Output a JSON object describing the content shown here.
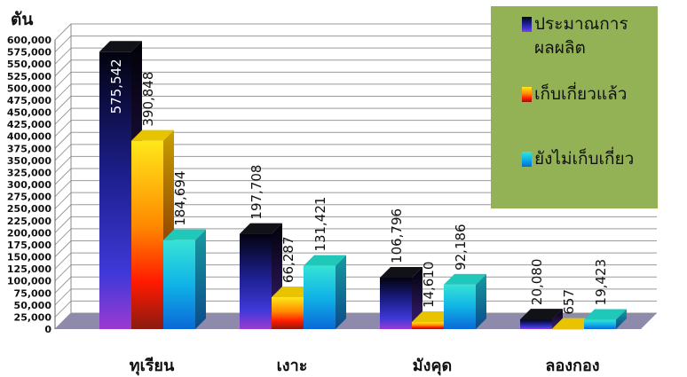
{
  "chart_data": {
    "type": "bar",
    "ylabel": "ตัน",
    "ylim": [
      0,
      600000
    ],
    "ytick_step": 25000,
    "grid": true,
    "legend_position": "top-right",
    "categories": [
      "ทุเรียน",
      "เงาะ",
      "มังคุด",
      "ลองกอง"
    ],
    "series": [
      {
        "name": "ประมาณการผลผลิต",
        "values": [
          575542,
          197708,
          106796,
          20080
        ],
        "labels": [
          "575,542",
          "197,708",
          "106,796",
          "20,080"
        ]
      },
      {
        "name": "เก็บเกี่ยวแล้ว",
        "values": [
          390848,
          66287,
          14610,
          657
        ],
        "labels": [
          "390,848",
          "66,287",
          "14,610",
          "657"
        ]
      },
      {
        "name": "ยังไม่เก็บเกี่ยว",
        "values": [
          184694,
          131421,
          92186,
          19423
        ],
        "labels": [
          "184,694",
          "131,421",
          "92,186",
          "19,423"
        ]
      }
    ],
    "legend_lines": [
      [
        "ประมาณการ",
        "ผลผลิต"
      ],
      [
        "เก็บเกี่ยวแล้ว"
      ],
      [
        "ยังไม่เก็บเกี่ยว"
      ]
    ],
    "colors": {
      "legend_bg": "#92b255",
      "floor": "#8d8aab",
      "grid": "#9a9a9a"
    }
  }
}
